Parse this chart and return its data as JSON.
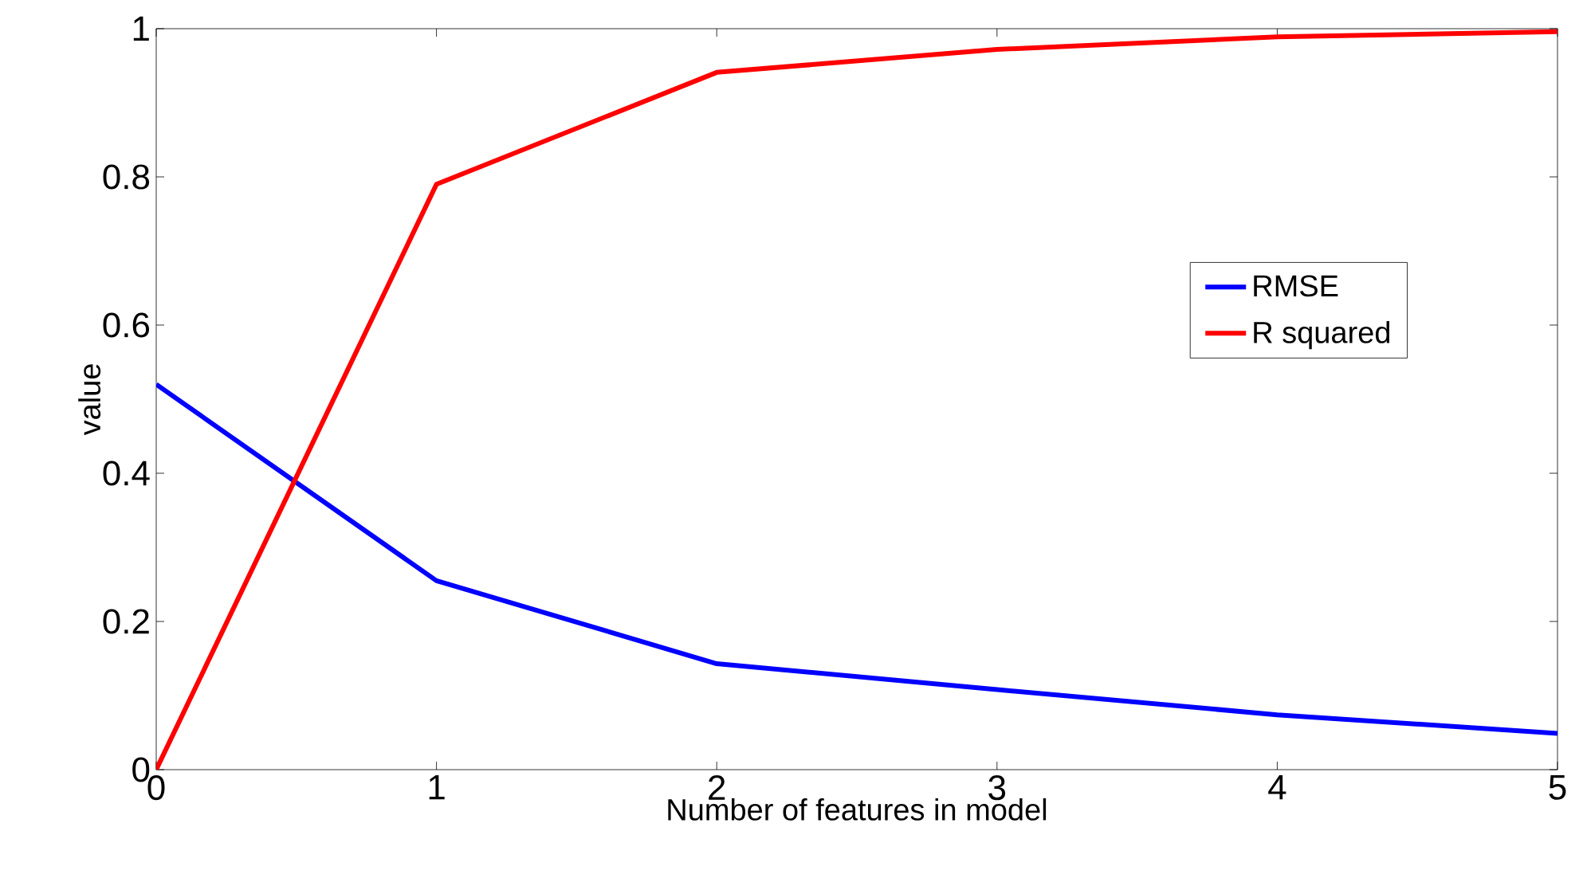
{
  "chart_data": {
    "type": "line",
    "xlabel": "Number of features in model",
    "ylabel": "value",
    "x": [
      0,
      1,
      2,
      3,
      4,
      5
    ],
    "series": [
      {
        "name": "RMSE",
        "color": "#0000ff",
        "values": [
          0.52,
          0.255,
          0.143,
          0.108,
          0.074,
          0.049
        ]
      },
      {
        "name": "R squared",
        "color": "#ff0000",
        "values": [
          0,
          0.79,
          0.941,
          0.972,
          0.989,
          0.996
        ]
      }
    ],
    "xlim": [
      0,
      5
    ],
    "ylim": [
      0,
      1
    ],
    "xticks": [
      0,
      1,
      2,
      3,
      4,
      5
    ],
    "yticks": [
      0,
      0.2,
      0.4,
      0.6,
      0.8,
      1
    ],
    "legend": "right",
    "grid": false,
    "marker": "none",
    "line_style": "solid"
  }
}
